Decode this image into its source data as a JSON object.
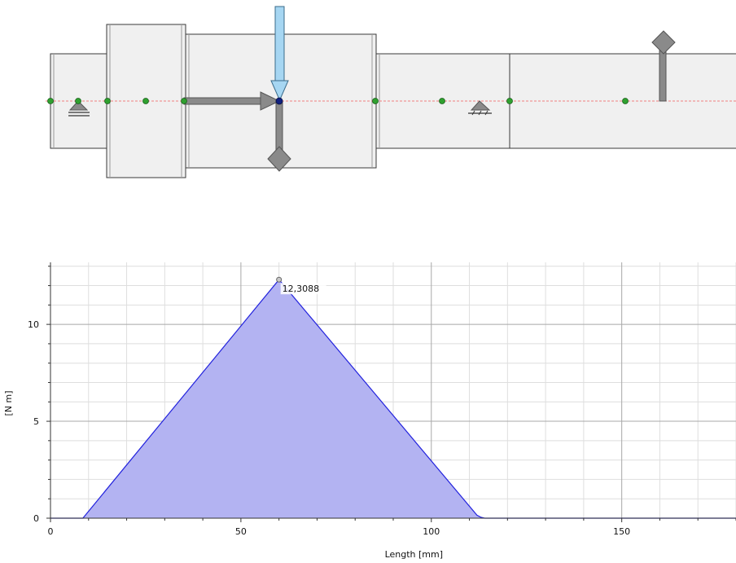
{
  "shaft": {
    "colors": {
      "body": "#f0f0f0",
      "outline": "#3a3a3a",
      "node": "#2fa02f",
      "marker": "#8a8a8a",
      "load_arrow": "#a6d6f2",
      "centerline": "#f08080",
      "selected_node": "#102080"
    }
  },
  "chart_data": {
    "type": "area",
    "x": [
      0,
      8.5,
      60,
      112,
      113,
      114,
      180
    ],
    "y": [
      0,
      0,
      12.3088,
      0.15,
      0.05,
      0,
      0
    ],
    "xlabel": "Length [mm]",
    "ylabel": "[N m]",
    "xlim": [
      0,
      180
    ],
    "ylim": [
      0,
      13.2
    ],
    "xticks": [
      0,
      50,
      100,
      150
    ],
    "yticks": [
      0,
      5,
      10
    ],
    "grid": true,
    "peak": {
      "x": 60,
      "y": 12.3088,
      "label": "12,3088"
    },
    "colors": {
      "fill": "#b3b3f2",
      "line": "#2222dd"
    }
  }
}
